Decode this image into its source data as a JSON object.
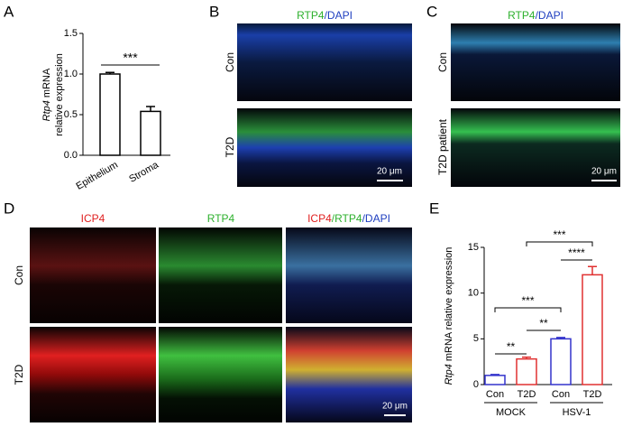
{
  "letters": [
    "A",
    "B",
    "C",
    "D",
    "E"
  ],
  "panel_b": {
    "title": [
      "RTP4",
      "/DAPI"
    ],
    "rows": [
      "Con",
      "T2D"
    ],
    "scale_bar": "20 μm"
  },
  "panel_c": {
    "title": [
      "RTP4",
      "/DAPI"
    ],
    "rows": [
      "Con",
      "T2D patient"
    ],
    "scale_bar": "20 μm"
  },
  "panel_d": {
    "columns": [
      [
        "ICP4"
      ],
      [
        "RTP4"
      ],
      [
        "ICP4",
        "/RTP4",
        "/DAPI"
      ]
    ],
    "rows": [
      "Con",
      "T2D"
    ],
    "scale_bar": "20 μm"
  },
  "chart_data": [
    {
      "type": "bar",
      "y_label": [
        "Rtp4",
        "mRNA",
        "relative expression"
      ],
      "categories": [
        "Epithelium",
        "Stroma"
      ],
      "values": [
        1.0,
        0.54
      ],
      "errors": [
        0.02,
        0.06
      ],
      "colors": [
        "#000000",
        "#000000"
      ],
      "ylim": [
        0,
        1.5
      ],
      "yticks": [
        {
          "value": 0,
          "label": "0.0"
        },
        {
          "value": 0.5,
          "label": "0.5"
        },
        {
          "value": 1,
          "label": "1.0"
        },
        {
          "value": 1.5,
          "label": "1.5"
        }
      ],
      "annotations": [
        "***"
      ]
    },
    {
      "type": "bar",
      "y_label": [
        "Rtp4",
        "mRNA relative expression"
      ],
      "categories": [
        "Con",
        "T2D",
        "Con",
        "T2D"
      ],
      "groups": [
        "MOCK",
        "HSV-1"
      ],
      "values": [
        1.0,
        2.8,
        5.0,
        12.0
      ],
      "errors": [
        0.1,
        0.2,
        0.15,
        0.9
      ],
      "colors": [
        "#3333cc",
        "#e03030",
        "#3333cc",
        "#e03030"
      ],
      "ylim": [
        0,
        15
      ],
      "yticks": [
        0,
        5,
        10,
        15
      ],
      "annotations": [
        "**",
        "**",
        "***",
        "****",
        "***"
      ]
    }
  ]
}
